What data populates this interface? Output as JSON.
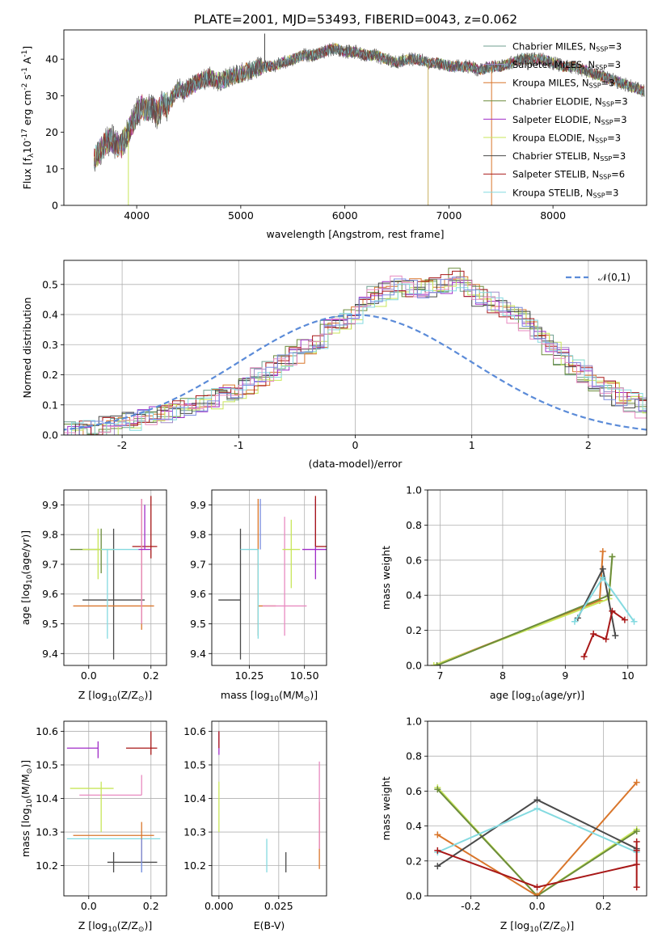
{
  "figure": {
    "title": "PLATE=2001, MJD=53493, FIBERID=0043, z=0.062"
  },
  "colors": {
    "Chabrier MILES": "#6f9f8f",
    "Salpeter MILES": "#a08cc8",
    "Kroupa MILES": "#d9762b",
    "Chabrier ELODIE": "#6c8c3c",
    "Salpeter ELODIE": "#a02cc8",
    "Kroupa ELODIE": "#c8e65a",
    "Chabrier STELIB": "#4a4a4a",
    "Salpeter STELIB": "#a81818",
    "Kroupa STELIB": "#84dae0",
    "gaussian": "#5b8bd8",
    "Salpeter MILES pink": "#e88ac0",
    "Chabrier MILES blue": "#7a8ce0"
  },
  "chart_data": [
    {
      "id": "spectrum",
      "type": "line",
      "xlabel": "wavelength [Angstrom, rest frame]",
      "ylabel": "Flux [f_λ10^-17 erg cm^-2 s^-1 A^-1]",
      "xlim": [
        3300,
        8900
      ],
      "ylim": [
        0,
        48
      ],
      "xticks": [
        4000,
        5000,
        6000,
        7000,
        8000
      ],
      "yticks": [
        0,
        10,
        20,
        30,
        40
      ],
      "grid": false,
      "legend_position": "right",
      "legend": [
        {
          "label": "Chabrier MILES, N",
          "sub": "SSP",
          "suffix": "=3",
          "color": "#6f9f8f"
        },
        {
          "label": "Salpeter MILES, N",
          "sub": "SSP",
          "suffix": "=3",
          "color": "#a08cc8"
        },
        {
          "label": "Kroupa MILES, N",
          "sub": "SSP",
          "suffix": "=3",
          "color": "#d9762b"
        },
        {
          "label": "Chabrier ELODIE, N",
          "sub": "SSP",
          "suffix": "=3",
          "color": "#6c8c3c"
        },
        {
          "label": "Salpeter ELODIE, N",
          "sub": "SSP",
          "suffix": "=3",
          "color": "#a02cc8"
        },
        {
          "label": "Kroupa ELODIE, N",
          "sub": "SSP",
          "suffix": "=3",
          "color": "#c8e65a"
        },
        {
          "label": "Chabrier STELIB, N",
          "sub": "SSP",
          "suffix": "=3",
          "color": "#4a4a4a"
        },
        {
          "label": "Salpeter STELIB, N",
          "sub": "SSP",
          "suffix": "=6",
          "color": "#a81818"
        },
        {
          "label": "Kroupa STELIB, N",
          "sub": "SSP",
          "suffix": "=3",
          "color": "#84dae0"
        }
      ],
      "continuum": {
        "x": [
          3580,
          3650,
          3700,
          3750,
          3800,
          3850,
          3900,
          3950,
          4000,
          4050,
          4100,
          4150,
          4200,
          4250,
          4300,
          4350,
          4400,
          4450,
          4500,
          4600,
          4700,
          4800,
          4900,
          5000,
          5100,
          5200,
          5300,
          5400,
          5500,
          5600,
          5700,
          5800,
          5900,
          6000,
          6100,
          6200,
          6300,
          6400,
          6500,
          6600,
          6700,
          6800,
          6900,
          7000,
          7100,
          7200,
          7300,
          7400,
          7500,
          7600,
          7700,
          7800,
          7900,
          8000,
          8100,
          8200,
          8300,
          8400,
          8500,
          8600,
          8700,
          8800,
          8900
        ],
        "y": [
          12,
          15,
          17,
          18,
          17,
          16,
          19,
          22,
          25,
          27,
          26,
          27,
          25,
          28,
          27,
          30,
          32,
          31,
          32,
          34,
          35,
          34,
          35,
          36,
          37,
          38,
          38,
          39,
          40,
          41,
          41,
          42,
          43,
          42,
          42,
          41,
          41,
          40,
          39,
          40,
          40,
          39,
          39,
          38,
          38,
          38,
          37,
          38,
          38,
          39,
          40,
          40,
          40,
          39,
          38,
          38,
          37,
          36,
          35,
          34,
          33,
          32,
          31
        ]
      },
      "spikes": [
        {
          "x": 3920,
          "ymin": 0,
          "color": "#c8e65a"
        },
        {
          "x": 6800,
          "ymin": 0,
          "color": "#c8b060"
        },
        {
          "x": 7410,
          "ymin": 0,
          "color": "#d9762b"
        },
        {
          "x": 5230,
          "ymax": 47,
          "color": "#4a4a4a"
        }
      ]
    },
    {
      "id": "residuals",
      "type": "histogram",
      "xlabel": "(data-model)/error",
      "ylabel": "Normed distribution",
      "xlim": [
        -2.5,
        2.5
      ],
      "ylim": [
        0,
        0.58
      ],
      "xticks": [
        -2,
        -1,
        0,
        1,
        2
      ],
      "yticks": [
        0.0,
        0.1,
        0.2,
        0.3,
        0.4,
        0.5
      ],
      "grid": true,
      "legend_position": "top-right",
      "legend": "𝒩(0,1)",
      "bin_width": 0.1,
      "bin_start": -2.5,
      "base_values": [
        0.01,
        0.02,
        0.02,
        0.03,
        0.04,
        0.05,
        0.05,
        0.06,
        0.07,
        0.09,
        0.1,
        0.11,
        0.12,
        0.14,
        0.15,
        0.17,
        0.19,
        0.21,
        0.24,
        0.26,
        0.3,
        0.32,
        0.35,
        0.38,
        0.4,
        0.44,
        0.46,
        0.48,
        0.5,
        0.49,
        0.48,
        0.49,
        0.5,
        0.52,
        0.49,
        0.46,
        0.44,
        0.42,
        0.4,
        0.38,
        0.34,
        0.3,
        0.26,
        0.22,
        0.2,
        0.17,
        0.15,
        0.13,
        0.11,
        0.09,
        0.08,
        0.07,
        0.06,
        0.06,
        0.05,
        0.04,
        0.04,
        0.03,
        0.03,
        0.02,
        0.02,
        0.02
      ]
    },
    {
      "id": "age-vs-Z",
      "type": "errorbar",
      "xlabel": "Z [log10(Z/Z⊙)]",
      "ylabel": "age [log10(age/yr)]",
      "xlim": [
        -0.08,
        0.25
      ],
      "ylim": [
        9.36,
        9.95
      ],
      "xticks": [
        0.0,
        0.2
      ],
      "yticks": [
        9.4,
        9.5,
        9.6,
        9.7,
        9.8,
        9.9
      ],
      "points": [
        {
          "x": 0.04,
          "y": 9.75,
          "xerr": [
            0.1,
            0.0
          ],
          "yerr": [
            0.08,
            0.07
          ],
          "color": "#6c8c3c"
        },
        {
          "x": 0.08,
          "y": 9.58,
          "xerr": [
            0.1,
            0.1
          ],
          "yerr": [
            0.2,
            0.24
          ],
          "color": "#4a4a4a"
        },
        {
          "x": 0.17,
          "y": 9.56,
          "xerr": [
            0.22,
            0.04
          ],
          "yerr": [
            0.08,
            0.36
          ],
          "color": "#d9762b"
        },
        {
          "x": 0.2,
          "y": 9.76,
          "xerr": [
            0.06,
            0.02
          ],
          "yerr": [
            0.04,
            0.17
          ],
          "color": "#a81818"
        },
        {
          "x": 0.03,
          "y": 9.75,
          "xerr": [
            0.05,
            0.05
          ],
          "yerr": [
            0.1,
            0.07
          ],
          "color": "#c8e65a"
        },
        {
          "x": 0.06,
          "y": 9.75,
          "xerr": [
            0.02,
            0.1
          ],
          "yerr": [
            0.3,
            0.0
          ],
          "color": "#84dae0"
        },
        {
          "x": 0.17,
          "y": 9.75,
          "xerr": [
            0.0,
            0.0
          ],
          "yerr": [
            0.25,
            0.17
          ],
          "color": "#e88ac0"
        },
        {
          "x": 0.18,
          "y": 9.75,
          "xerr": [
            0.02,
            0.02
          ],
          "yerr": [
            0.0,
            0.15
          ],
          "color": "#a02cc8"
        }
      ]
    },
    {
      "id": "age-vs-mass",
      "type": "errorbar",
      "xlabel": "mass [log10(M/M⊙)]",
      "ylabel": "",
      "xlim": [
        10.08,
        10.6
      ],
      "ylim": [
        9.36,
        9.95
      ],
      "xticks": [
        10.25,
        10.5
      ],
      "yticks": [
        9.4,
        9.5,
        9.6,
        9.7,
        9.8,
        9.9
      ],
      "points": [
        {
          "x": 10.21,
          "y": 9.58,
          "xerr": [
            0.1,
            0.0
          ],
          "yerr": [
            0.2,
            0.24
          ],
          "color": "#4a4a4a"
        },
        {
          "x": 10.29,
          "y": 9.56,
          "xerr": [
            0.0,
            0.08
          ],
          "yerr": [
            0.1,
            0.36
          ],
          "color": "#d9762b"
        },
        {
          "x": 10.29,
          "y": 9.75,
          "xerr": [
            0.08,
            0.0
          ],
          "yerr": [
            0.3,
            0.0
          ],
          "color": "#84dae0"
        },
        {
          "x": 10.3,
          "y": 9.75,
          "xerr": [
            0.0,
            0.0
          ],
          "yerr": [
            0.0,
            0.17
          ],
          "color": "#7a8ce0"
        },
        {
          "x": 10.41,
          "y": 9.56,
          "xerr": [
            0.1,
            0.1
          ],
          "yerr": [
            0.1,
            0.3
          ],
          "color": "#e88ac0"
        },
        {
          "x": 10.44,
          "y": 9.75,
          "xerr": [
            0.04,
            0.04
          ],
          "yerr": [
            0.13,
            0.1
          ],
          "color": "#c8e65a"
        },
        {
          "x": 10.55,
          "y": 9.75,
          "xerr": [
            0.06,
            0.06
          ],
          "yerr": [
            0.1,
            0.17
          ],
          "color": "#a02cc8"
        },
        {
          "x": 10.55,
          "y": 9.76,
          "xerr": [
            0.0,
            0.05
          ],
          "yerr": [
            0.0,
            0.17
          ],
          "color": "#a81818"
        }
      ]
    },
    {
      "id": "weight-vs-age",
      "type": "line",
      "xlabel": "age [log10(age/yr)]",
      "ylabel": "mass weight",
      "xlim": [
        6.8,
        10.3
      ],
      "ylim": [
        0.0,
        1.0
      ],
      "xticks": [
        7,
        8,
        9,
        10
      ],
      "yticks": [
        0.0,
        0.2,
        0.4,
        0.6,
        0.8,
        1.0
      ],
      "grid": true,
      "series": [
        {
          "color": "#d9762b",
          "x": [
            6.9,
            9.55,
            9.6
          ],
          "y": [
            0.0,
            0.37,
            0.65
          ]
        },
        {
          "color": "#c8e65a",
          "x": [
            6.9,
            9.7,
            9.75
          ],
          "y": [
            0.0,
            0.38,
            0.62
          ]
        },
        {
          "color": "#6c8c3c",
          "x": [
            6.95,
            9.7,
            9.75
          ],
          "y": [
            0.0,
            0.4,
            0.62
          ]
        },
        {
          "color": "#4a4a4a",
          "x": [
            9.2,
            9.6,
            9.8
          ],
          "y": [
            0.27,
            0.55,
            0.17
          ]
        },
        {
          "color": "#84dae0",
          "x": [
            9.15,
            9.6,
            10.1
          ],
          "y": [
            0.25,
            0.5,
            0.25
          ]
        },
        {
          "color": "#a81818",
          "x": [
            9.3,
            9.45,
            9.65,
            9.75,
            9.95
          ],
          "y": [
            0.05,
            0.18,
            0.15,
            0.31,
            0.26
          ]
        }
      ]
    },
    {
      "id": "mass-vs-Z",
      "type": "errorbar",
      "xlabel": "Z [log10(Z/Z⊙)]",
      "ylabel": "mass [log10(M/M⊙)]",
      "xlim": [
        -0.08,
        0.25
      ],
      "ylim": [
        10.11,
        10.63
      ],
      "xticks": [
        0.0,
        0.2
      ],
      "yticks": [
        10.2,
        10.3,
        10.4,
        10.5,
        10.6
      ],
      "points": [
        {
          "x": 0.08,
          "y": 10.21,
          "xerr": [
            0.02,
            0.14
          ],
          "yerr": [
            0.03,
            0.03
          ],
          "color": "#4a4a4a"
        },
        {
          "x": 0.17,
          "y": 10.28,
          "xerr": [
            0.24,
            0.06
          ],
          "yerr": [
            0.1,
            0.0
          ],
          "color": "#84dae0"
        },
        {
          "x": 0.17,
          "y": 10.29,
          "xerr": [
            0.22,
            0.04
          ],
          "yerr": [
            0.08,
            0.04
          ],
          "color": "#d9762b"
        },
        {
          "x": 0.17,
          "y": 10.41,
          "xerr": [
            0.2,
            0.0
          ],
          "yerr": [
            0.0,
            0.06
          ],
          "color": "#e88ac0"
        },
        {
          "x": 0.04,
          "y": 10.43,
          "xerr": [
            0.1,
            0.04
          ],
          "yerr": [
            0.13,
            0.02
          ],
          "color": "#c8e65a"
        },
        {
          "x": 0.03,
          "y": 10.55,
          "xerr": [
            0.1,
            0.0
          ],
          "yerr": [
            0.03,
            0.02
          ],
          "color": "#a02cc8"
        },
        {
          "x": 0.2,
          "y": 10.55,
          "xerr": [
            0.08,
            0.02
          ],
          "yerr": [
            0.02,
            0.05
          ],
          "color": "#a81818"
        },
        {
          "x": 0.17,
          "y": 10.28,
          "xerr": [
            0.0,
            0.0
          ],
          "yerr": [
            0.1,
            0.0
          ],
          "color": "#7a8ce0"
        }
      ]
    },
    {
      "id": "mass-vs-EBV",
      "type": "errorbar",
      "xlabel": "E(B-V)",
      "ylabel": "",
      "xlim": [
        -0.003,
        0.045
      ],
      "ylim": [
        10.11,
        10.63
      ],
      "xticks": [
        0.0,
        0.025
      ],
      "yticks": [
        10.2,
        10.3,
        10.4,
        10.5,
        10.6
      ],
      "points": [
        {
          "x": 0.0,
          "y": 10.38,
          "xerr": [
            0.0,
            0.0
          ],
          "yerr": [
            0.08,
            0.07
          ],
          "color": "#c8e65a"
        },
        {
          "x": 0.0,
          "y": 10.55,
          "xerr": [
            0.0,
            0.0
          ],
          "yerr": [
            0.02,
            0.05
          ],
          "color": "#a02cc8"
        },
        {
          "x": 0.0,
          "y": 10.58,
          "xerr": [
            0.0,
            0.0
          ],
          "yerr": [
            0.03,
            0.02
          ],
          "color": "#a81818"
        },
        {
          "x": 0.02,
          "y": 10.23,
          "xerr": [
            0.0,
            0.0
          ],
          "yerr": [
            0.05,
            0.05
          ],
          "color": "#84dae0"
        },
        {
          "x": 0.028,
          "y": 10.21,
          "xerr": [
            0.0,
            0.0
          ],
          "yerr": [
            0.03,
            0.03
          ],
          "color": "#4a4a4a"
        },
        {
          "x": 0.042,
          "y": 10.29,
          "xerr": [
            0.0,
            0.0
          ],
          "yerr": [
            0.1,
            0.1
          ],
          "color": "#d9762b"
        },
        {
          "x": 0.042,
          "y": 10.35,
          "xerr": [
            0.0,
            0.0
          ],
          "yerr": [
            0.1,
            0.16
          ],
          "color": "#e88ac0"
        }
      ]
    },
    {
      "id": "weight-vs-Z",
      "type": "line",
      "xlabel": "Z [log10(Z/Z⊙)]",
      "ylabel": "mass weight",
      "xlim": [
        -0.33,
        0.33
      ],
      "ylim": [
        0.0,
        1.0
      ],
      "xticks": [
        -0.2,
        0.0,
        0.2
      ],
      "yticks": [
        0.0,
        0.2,
        0.4,
        0.6,
        0.8,
        1.0
      ],
      "grid": true,
      "series": [
        {
          "color": "#c8e65a",
          "x": [
            -0.3,
            0.0,
            0.3
          ],
          "y": [
            0.62,
            0.0,
            0.38
          ]
        },
        {
          "color": "#6c8c3c",
          "x": [
            -0.3,
            0.0,
            0.3
          ],
          "y": [
            0.61,
            0.0,
            0.37
          ]
        },
        {
          "color": "#d9762b",
          "x": [
            -0.3,
            0.0,
            0.3
          ],
          "y": [
            0.35,
            0.0,
            0.65
          ]
        },
        {
          "color": "#4a4a4a",
          "x": [
            -0.3,
            0.0,
            0.3
          ],
          "y": [
            0.17,
            0.55,
            0.27
          ]
        },
        {
          "color": "#84dae0",
          "x": [
            -0.3,
            0.0,
            0.3
          ],
          "y": [
            0.25,
            0.5,
            0.25
          ]
        },
        {
          "color": "#a81818",
          "x": [
            -0.3,
            0.0,
            0.3
          ],
          "y": [
            0.26,
            0.05,
            0.18
          ]
        }
      ],
      "extra_markers": [
        {
          "color": "#a81818",
          "x": 0.3,
          "y": 0.05
        },
        {
          "color": "#a81818",
          "x": 0.3,
          "y": 0.26
        },
        {
          "color": "#a81818",
          "x": 0.3,
          "y": 0.31
        }
      ]
    }
  ]
}
